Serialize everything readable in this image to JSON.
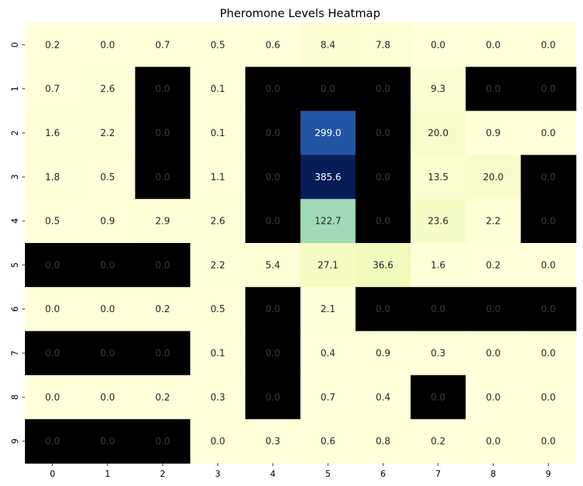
{
  "chart_data": {
    "type": "heatmap",
    "title": "Pheromone Levels Heatmap",
    "x_labels": [
      "0",
      "1",
      "2",
      "3",
      "4",
      "5",
      "6",
      "7",
      "8",
      "9"
    ],
    "y_labels": [
      "0",
      "1",
      "2",
      "3",
      "4",
      "5",
      "6",
      "7",
      "8",
      "9"
    ],
    "values": [
      [
        0.2,
        0.0,
        0.7,
        0.5,
        0.6,
        8.4,
        7.8,
        0.0,
        0.0,
        0.0
      ],
      [
        0.7,
        2.6,
        0.0,
        0.1,
        0.0,
        0.0,
        0.0,
        9.3,
        0.0,
        0.0
      ],
      [
        1.6,
        2.2,
        0.0,
        0.1,
        0.0,
        299.0,
        0.0,
        20.0,
        0.9,
        0.0
      ],
      [
        1.8,
        0.5,
        0.0,
        1.1,
        0.0,
        385.6,
        0.0,
        13.5,
        20.0,
        0.0
      ],
      [
        0.5,
        0.9,
        2.9,
        2.6,
        0.0,
        122.7,
        0.0,
        23.6,
        2.2,
        0.0
      ],
      [
        0.0,
        0.0,
        0.0,
        2.2,
        5.4,
        27.1,
        36.6,
        1.6,
        0.2,
        0.0
      ],
      [
        0.0,
        0.0,
        0.2,
        0.5,
        0.0,
        2.1,
        0.0,
        0.0,
        0.0,
        0.0
      ],
      [
        0.0,
        0.0,
        0.0,
        0.1,
        0.0,
        0.4,
        0.9,
        0.3,
        0.0,
        0.0
      ],
      [
        0.0,
        0.0,
        0.2,
        0.3,
        0.0,
        0.7,
        0.4,
        0.0,
        0.0,
        0.0
      ],
      [
        0.0,
        0.0,
        0.0,
        0.0,
        0.3,
        0.6,
        0.8,
        0.2,
        0.0,
        0.0
      ]
    ],
    "obstacles": [
      [
        0,
        0,
        0,
        0,
        0,
        0,
        0,
        0,
        0,
        0
      ],
      [
        0,
        0,
        1,
        0,
        1,
        1,
        1,
        0,
        1,
        1
      ],
      [
        0,
        0,
        1,
        0,
        1,
        0,
        1,
        0,
        0,
        0
      ],
      [
        0,
        0,
        1,
        0,
        1,
        0,
        1,
        0,
        0,
        1
      ],
      [
        0,
        0,
        0,
        0,
        1,
        0,
        1,
        0,
        0,
        1
      ],
      [
        1,
        1,
        1,
        0,
        0,
        0,
        0,
        0,
        0,
        0
      ],
      [
        0,
        0,
        0,
        0,
        1,
        0,
        1,
        1,
        1,
        1
      ],
      [
        1,
        1,
        1,
        0,
        1,
        0,
        0,
        0,
        0,
        0
      ],
      [
        0,
        0,
        0,
        0,
        1,
        0,
        0,
        1,
        0,
        0
      ],
      [
        1,
        1,
        1,
        0,
        0,
        0,
        0,
        0,
        0,
        0
      ]
    ],
    "colormap": "YlGnBu",
    "value_range": [
      0,
      385.6
    ],
    "obstacle_color": "#000000",
    "colorbar": false,
    "grid": false
  }
}
